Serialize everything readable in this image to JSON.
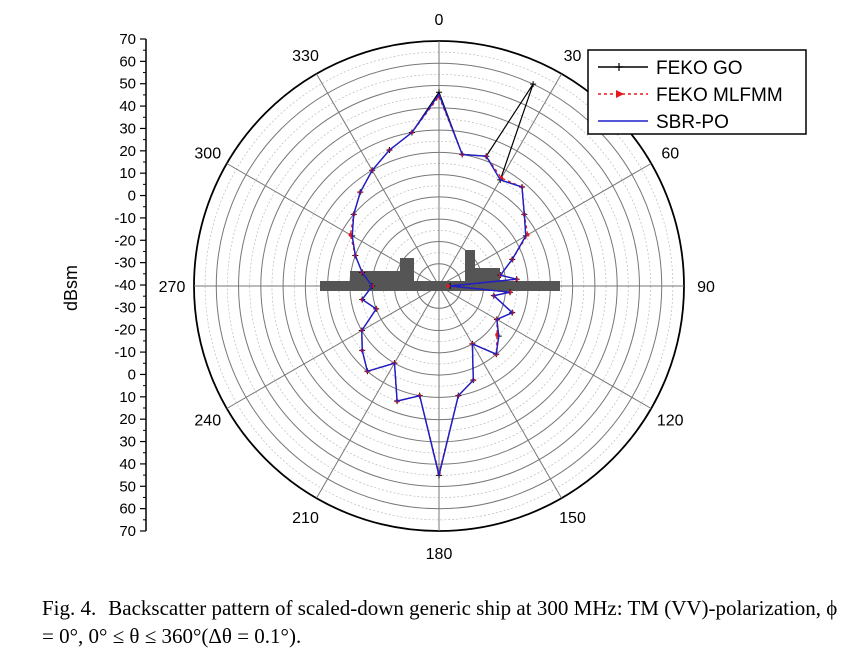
{
  "chart_data": {
    "type": "polar-line",
    "ylabel": "dBsm",
    "radial_range": [
      -40,
      70
    ],
    "radial_axis_ticks": [
      "70",
      "60",
      "50",
      "40",
      "30",
      "20",
      "10",
      "0",
      "-10",
      "-20",
      "-30",
      "-40",
      "-30",
      "-20",
      "-10",
      "0",
      "10",
      "20",
      "30",
      "40",
      "50",
      "60",
      "70"
    ],
    "angle_ticks": [
      {
        "angle": 0,
        "label": "0"
      },
      {
        "angle": 30,
        "label": "30"
      },
      {
        "angle": 60,
        "label": "60"
      },
      {
        "angle": 90,
        "label": "90"
      },
      {
        "angle": 120,
        "label": "120"
      },
      {
        "angle": 150,
        "label": "150"
      },
      {
        "angle": 180,
        "label": "180"
      },
      {
        "angle": 210,
        "label": "210"
      },
      {
        "angle": 240,
        "label": "240"
      },
      {
        "angle": 270,
        "label": "270"
      },
      {
        "angle": 300,
        "label": "300"
      },
      {
        "angle": 330,
        "label": "330"
      }
    ],
    "grid": true,
    "legend_position": "top-right",
    "series": [
      {
        "name": "FEKO GO",
        "color": "#000000",
        "style": "solid-plus",
        "theta_deg": [
          0,
          10,
          20,
          25,
          30,
          40,
          50,
          60,
          70,
          80,
          85,
          90,
          95,
          100,
          110,
          120,
          130,
          140,
          150,
          160,
          170,
          180,
          190,
          200,
          210,
          220,
          230,
          240,
          250,
          260,
          270,
          280,
          290,
          300,
          310,
          320,
          330,
          340,
          350
        ],
        "rcs_dbsm": [
          47,
          20,
          22,
          60,
          15,
          18,
          10,
          5,
          -5,
          -12,
          -5,
          -35,
          -8,
          -15,
          -5,
          -10,
          -5,
          0,
          -10,
          5,
          10,
          45,
          10,
          15,
          0,
          10,
          5,
          0,
          -10,
          -5,
          -10,
          -5,
          0,
          5,
          10,
          15,
          20,
          25,
          30
        ]
      },
      {
        "name": "FEKO MLFMM",
        "color": "#e41a1c",
        "style": "dashed-arrow",
        "theta_deg": [
          0,
          10,
          20,
          30,
          40,
          50,
          60,
          70,
          80,
          85,
          90,
          95,
          100,
          110,
          120,
          130,
          140,
          150,
          160,
          170,
          180,
          190,
          200,
          210,
          220,
          230,
          240,
          250,
          260,
          270,
          280,
          290,
          300,
          310,
          320,
          330,
          340,
          350
        ],
        "rcs_dbsm": [
          45,
          20,
          22,
          16,
          18,
          10,
          6,
          -5,
          -12,
          -5,
          -36,
          -8,
          -15,
          -5,
          -10,
          -6,
          0,
          -10,
          5,
          10,
          44,
          10,
          15,
          0,
          10,
          5,
          0,
          -10,
          -5,
          -10,
          -5,
          0,
          6,
          10,
          15,
          20,
          25,
          30
        ]
      },
      {
        "name": "SBR-PO",
        "color": "#1f1fcc",
        "style": "solid",
        "theta_deg": [
          0,
          10,
          20,
          30,
          40,
          50,
          60,
          70,
          80,
          85,
          90,
          95,
          100,
          110,
          120,
          130,
          140,
          150,
          160,
          170,
          180,
          190,
          200,
          210,
          220,
          230,
          240,
          250,
          260,
          270,
          280,
          290,
          300,
          310,
          320,
          330,
          340,
          350
        ],
        "rcs_dbsm": [
          46,
          20,
          22,
          15,
          18,
          10,
          5,
          -5,
          -12,
          -5,
          -35,
          -8,
          -15,
          -5,
          -10,
          -5,
          0,
          -10,
          5,
          10,
          45,
          10,
          15,
          0,
          10,
          5,
          0,
          -10,
          -5,
          -10,
          -5,
          0,
          5,
          10,
          15,
          20,
          25,
          30
        ]
      }
    ]
  },
  "caption": {
    "number": "Fig. 4.",
    "text": "Backscatter pattern of scaled-down generic ship at 300 MHz: TM (VV)-polarization, ϕ = 0°, 0° ≤ θ ≤ 360°(Δθ = 0.1°)."
  }
}
